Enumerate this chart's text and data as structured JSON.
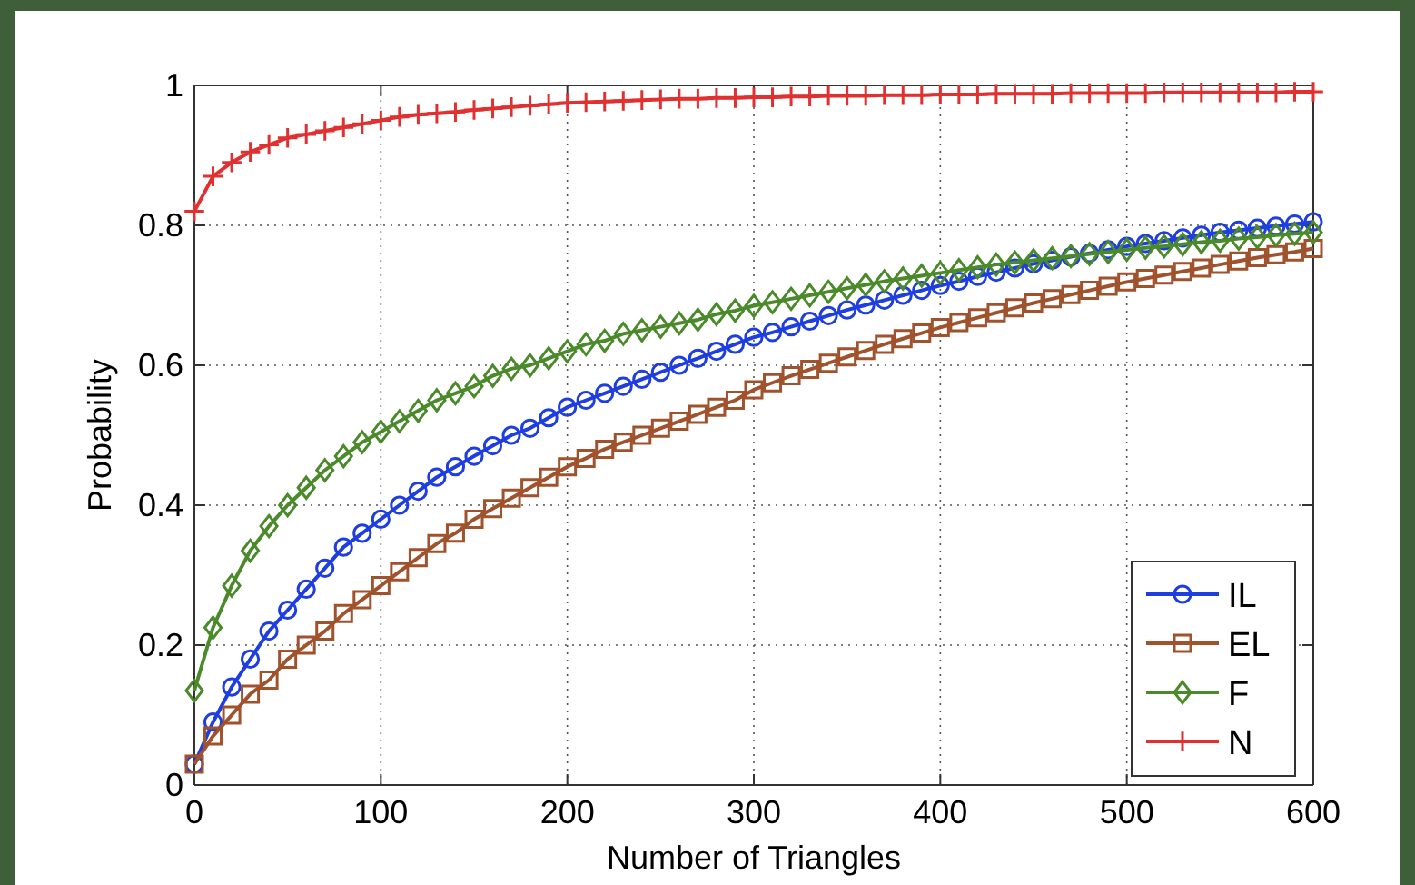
{
  "chart_data": {
    "type": "line",
    "xlabel": "Number of Triangles",
    "ylabel": "Probability",
    "x": [
      0,
      10,
      20,
      30,
      40,
      50,
      60,
      70,
      80,
      90,
      100,
      110,
      120,
      130,
      140,
      150,
      160,
      170,
      180,
      190,
      200,
      210,
      220,
      230,
      240,
      250,
      260,
      270,
      280,
      290,
      300,
      310,
      320,
      330,
      340,
      350,
      360,
      370,
      380,
      390,
      400,
      410,
      420,
      430,
      440,
      450,
      460,
      470,
      480,
      490,
      500,
      510,
      520,
      530,
      540,
      550,
      560,
      570,
      580,
      590,
      600
    ],
    "xlim": [
      0,
      600
    ],
    "xticks": [
      0,
      100,
      200,
      300,
      400,
      500,
      600
    ],
    "ylim": [
      0,
      1
    ],
    "yticks": [
      0,
      0.2,
      0.4,
      0.6,
      0.8,
      1
    ],
    "grid": true,
    "legend": "bottom right",
    "line_style": "solid",
    "series": [
      {
        "name": "IL",
        "color": "#1f3ee0",
        "marker": "circle",
        "values": [
          0.03,
          0.09,
          0.14,
          0.18,
          0.22,
          0.25,
          0.28,
          0.31,
          0.34,
          0.36,
          0.38,
          0.4,
          0.42,
          0.44,
          0.455,
          0.47,
          0.485,
          0.5,
          0.51,
          0.525,
          0.54,
          0.55,
          0.56,
          0.57,
          0.58,
          0.59,
          0.6,
          0.61,
          0.62,
          0.63,
          0.64,
          0.647,
          0.655,
          0.663,
          0.671,
          0.679,
          0.686,
          0.693,
          0.7,
          0.707,
          0.714,
          0.72,
          0.727,
          0.733,
          0.739,
          0.745,
          0.75,
          0.755,
          0.76,
          0.765,
          0.77,
          0.774,
          0.778,
          0.782,
          0.786,
          0.79,
          0.793,
          0.796,
          0.799,
          0.802,
          0.805
        ]
      },
      {
        "name": "EL",
        "color": "#a0522d",
        "marker": "square",
        "values": [
          0.03,
          0.07,
          0.1,
          0.13,
          0.15,
          0.18,
          0.2,
          0.22,
          0.245,
          0.265,
          0.285,
          0.305,
          0.325,
          0.345,
          0.36,
          0.38,
          0.395,
          0.41,
          0.425,
          0.44,
          0.455,
          0.467,
          0.48,
          0.49,
          0.5,
          0.51,
          0.52,
          0.53,
          0.54,
          0.55,
          0.565,
          0.575,
          0.585,
          0.594,
          0.603,
          0.612,
          0.621,
          0.63,
          0.638,
          0.646,
          0.654,
          0.661,
          0.668,
          0.675,
          0.682,
          0.689,
          0.695,
          0.701,
          0.707,
          0.713,
          0.719,
          0.724,
          0.729,
          0.734,
          0.739,
          0.744,
          0.749,
          0.754,
          0.758,
          0.762,
          0.767
        ]
      },
      {
        "name": "F",
        "color": "#4a8a2a",
        "marker": "diamond",
        "values": [
          0.135,
          0.225,
          0.285,
          0.335,
          0.37,
          0.4,
          0.425,
          0.45,
          0.47,
          0.49,
          0.505,
          0.52,
          0.535,
          0.55,
          0.56,
          0.57,
          0.585,
          0.595,
          0.6,
          0.61,
          0.62,
          0.63,
          0.635,
          0.645,
          0.65,
          0.655,
          0.66,
          0.665,
          0.673,
          0.678,
          0.685,
          0.69,
          0.695,
          0.7,
          0.705,
          0.71,
          0.715,
          0.72,
          0.724,
          0.728,
          0.732,
          0.736,
          0.74,
          0.744,
          0.747,
          0.75,
          0.753,
          0.756,
          0.759,
          0.762,
          0.765,
          0.768,
          0.77,
          0.773,
          0.776,
          0.778,
          0.781,
          0.783,
          0.786,
          0.788,
          0.79
        ]
      },
      {
        "name": "N",
        "color": "#e03030",
        "marker": "cross",
        "values": [
          0.82,
          0.87,
          0.89,
          0.905,
          0.915,
          0.925,
          0.93,
          0.935,
          0.94,
          0.945,
          0.95,
          0.955,
          0.958,
          0.96,
          0.962,
          0.965,
          0.967,
          0.969,
          0.971,
          0.973,
          0.975,
          0.976,
          0.977,
          0.978,
          0.979,
          0.98,
          0.981,
          0.981,
          0.982,
          0.982,
          0.983,
          0.983,
          0.984,
          0.984,
          0.985,
          0.985,
          0.985,
          0.986,
          0.986,
          0.986,
          0.987,
          0.987,
          0.987,
          0.988,
          0.988,
          0.988,
          0.988,
          0.989,
          0.989,
          0.989,
          0.989,
          0.989,
          0.99,
          0.99,
          0.99,
          0.99,
          0.99,
          0.99,
          0.99,
          0.991,
          0.991
        ]
      }
    ]
  }
}
